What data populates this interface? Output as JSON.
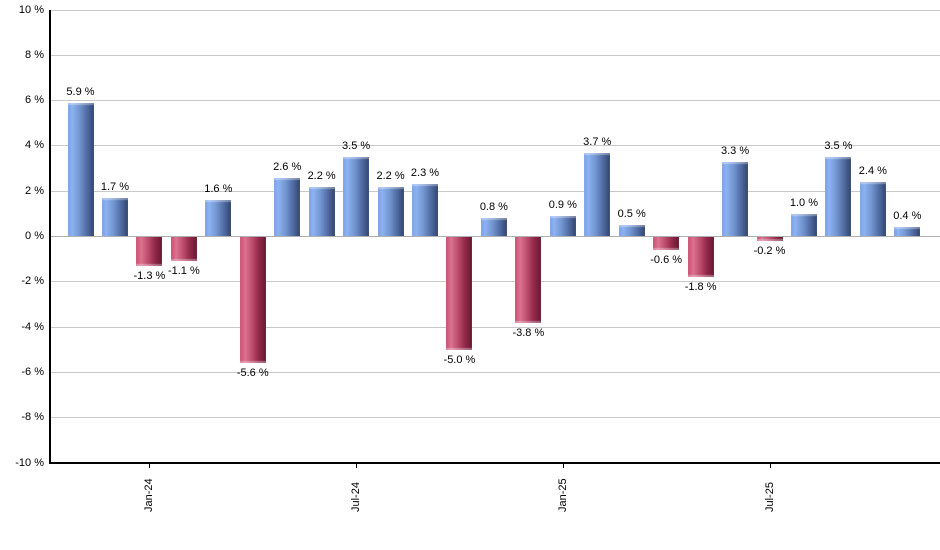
{
  "chart_data": {
    "type": "bar",
    "title": "",
    "xlabel": "",
    "ylabel": "",
    "unit": "%",
    "ylim": [
      -10,
      10
    ],
    "y_tick_step": 2,
    "grid": true,
    "legend": false,
    "y_tick_labels": [
      "10 %",
      "8 %",
      "6 %",
      "4 %",
      "2 %",
      "0 %",
      "-2 %",
      "-4 %",
      "-6 %",
      "-8 %",
      "-10 %"
    ],
    "x_tick_labels": [
      "Jan-24",
      "Jul-24",
      "Jan-25",
      "Jul-25"
    ],
    "x_tick_bar_indices": [
      2,
      8,
      14,
      20
    ],
    "values": [
      5.9,
      1.7,
      -1.3,
      -1.1,
      1.6,
      -5.6,
      2.6,
      2.2,
      3.5,
      2.2,
      2.3,
      -5.0,
      0.8,
      -3.8,
      0.9,
      3.7,
      0.5,
      -0.6,
      -1.8,
      3.3,
      -0.2,
      1.0,
      3.5,
      2.4,
      0.4
    ],
    "bar_labels": [
      "5.9 %",
      "1.7 %",
      "-1.3 %",
      "-1.1 %",
      "1.6 %",
      "-5.6 %",
      "2.6 %",
      "2.2 %",
      "3.5 %",
      "2.2 %",
      "2.3 %",
      "-5.0 %",
      "0.8 %",
      "-3.8 %",
      "0.9 %",
      "3.7 %",
      "0.5 %",
      "-0.6 %",
      "-1.8 %",
      "3.3 %",
      "-0.2 %",
      "1.0 %",
      "3.5 %",
      "2.4 %",
      "0.4 %"
    ],
    "colors": {
      "positive_bar_base": "#7295cf",
      "negative_bar_base": "#c04f6e",
      "positive_gradient": [
        "#7ba1e2",
        "#8cb2f2",
        "#7295cf",
        "#4d679e",
        "#31456c"
      ],
      "negative_gradient": [
        "#cc4d70",
        "#da7391",
        "#bf4e6d",
        "#93294b",
        "#671831"
      ],
      "gridline": "#c9c9c9",
      "zero_line": "#b0b0b0",
      "axis": "#000000",
      "label_text": "#000000",
      "background": "#ffffff"
    }
  }
}
